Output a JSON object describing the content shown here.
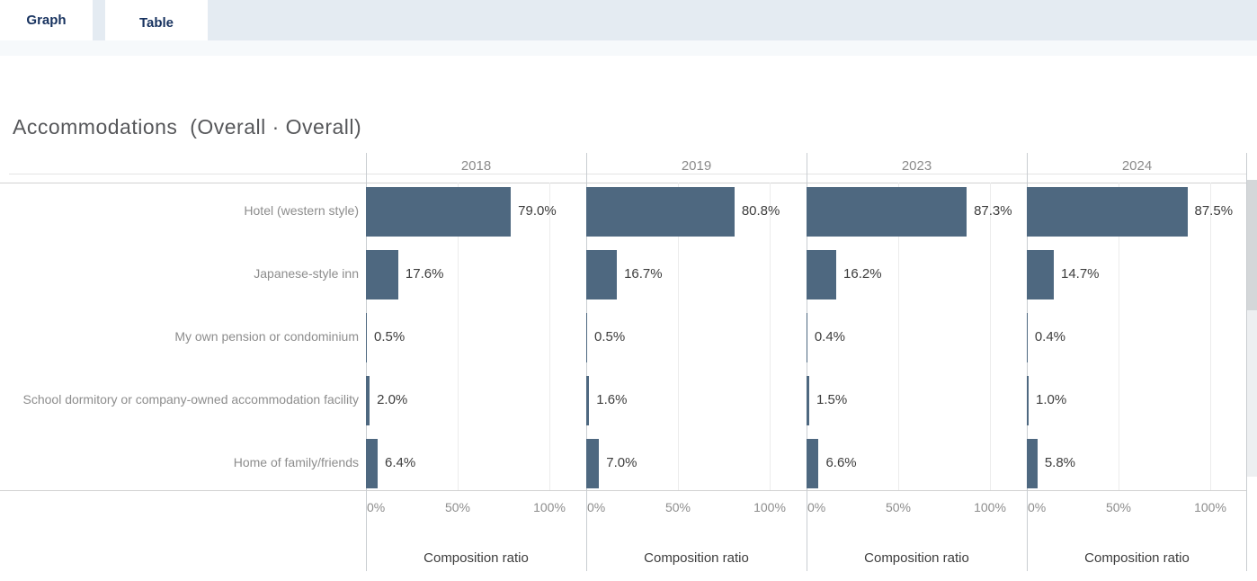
{
  "tabs": [
    {
      "label": "Graph",
      "active": true
    },
    {
      "label": "Table",
      "active": false
    }
  ],
  "chart_data": {
    "type": "bar",
    "orientation": "horizontal",
    "title": "Accommodations  (Overall · Overall)",
    "categories": [
      "Hotel (western style)",
      "Japanese-style inn",
      "My own pension or condominium",
      "School dormitory or company-owned accommodation facility",
      "Home of family/friends"
    ],
    "series": [
      {
        "name": "2018",
        "values": [
          79.0,
          17.6,
          0.5,
          2.0,
          6.4
        ],
        "labels": [
          "79.0%",
          "17.6%",
          "0.5%",
          "2.0%",
          "6.4%"
        ]
      },
      {
        "name": "2019",
        "values": [
          80.8,
          16.7,
          0.5,
          1.6,
          7.0
        ],
        "labels": [
          "80.8%",
          "16.7%",
          "0.5%",
          "1.6%",
          "7.0%"
        ]
      },
      {
        "name": "2023",
        "values": [
          87.3,
          16.2,
          0.4,
          1.5,
          6.6
        ],
        "labels": [
          "87.3%",
          "16.2%",
          "0.4%",
          "1.5%",
          "6.6%"
        ]
      },
      {
        "name": "2024",
        "values": [
          87.5,
          14.7,
          0.4,
          1.0,
          5.8
        ],
        "labels": [
          "87.5%",
          "14.7%",
          "0.4%",
          "1.0%",
          "5.8%"
        ]
      }
    ],
    "x_ticks": [
      "0%",
      "50%",
      "100%"
    ],
    "x_tick_values": [
      0,
      50,
      100
    ],
    "xlim": [
      0,
      120
    ],
    "xlabel": "Composition ratio",
    "grid": true,
    "legend": "none",
    "bar_color": "#4e6880"
  },
  "colors": {
    "bar": "#4e6880",
    "tab_bar_bg": "#e4ebf2",
    "tab_text": "#17325f",
    "axis_text": "#8d8d8d",
    "value_text": "#3d3d3d"
  }
}
